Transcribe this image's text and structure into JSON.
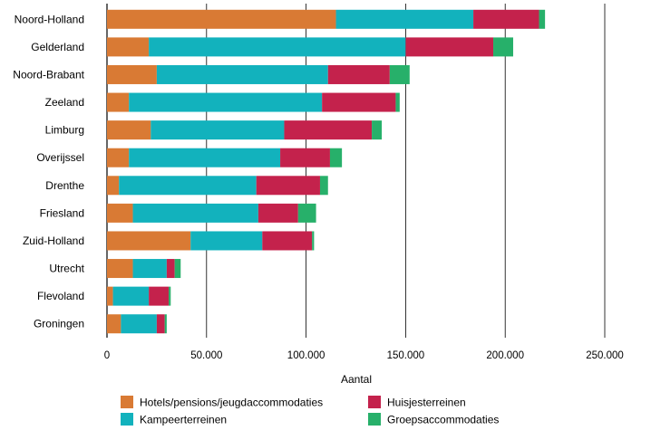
{
  "chart_data": {
    "type": "bar",
    "orientation": "horizontal",
    "stacked": true,
    "xlabel": "Aantal",
    "xlim": [
      0,
      250000
    ],
    "xticks": [
      0,
      50000,
      100000,
      150000,
      200000,
      250000
    ],
    "xtick_labels": [
      "0",
      "50.000",
      "100.000",
      "150.000",
      "200.000",
      "250.000"
    ],
    "grid": "vertical",
    "legend_position": "bottom",
    "categories": [
      "Noord-Holland",
      "Gelderland",
      "Noord-Brabant",
      "Zeeland",
      "Limburg",
      "Overijssel",
      "Drenthe",
      "Friesland",
      "Zuid-Holland",
      "Utrecht",
      "Flevoland",
      "Groningen"
    ],
    "series": [
      {
        "name": "Hotels/pensions/jeugdaccommodaties",
        "color": "#d97a34",
        "values": [
          115000,
          21000,
          25000,
          11000,
          22000,
          11000,
          6000,
          13000,
          42000,
          13000,
          3000,
          7000
        ]
      },
      {
        "name": "Kampeerterreinen",
        "color": "#12b2bd",
        "values": [
          69000,
          129000,
          86000,
          97000,
          67000,
          76000,
          69000,
          63000,
          36000,
          17000,
          18000,
          18000
        ]
      },
      {
        "name": "Huisjesterreinen",
        "color": "#c4224c",
        "values": [
          33000,
          44000,
          31000,
          37000,
          44000,
          25000,
          32000,
          20000,
          25000,
          4000,
          10000,
          4000
        ]
      },
      {
        "name": "Groepsaccommodaties",
        "color": "#27b06a",
        "values": [
          3000,
          10000,
          10000,
          2000,
          5000,
          6000,
          4000,
          9000,
          1000,
          3000,
          1000,
          1000
        ]
      }
    ]
  }
}
